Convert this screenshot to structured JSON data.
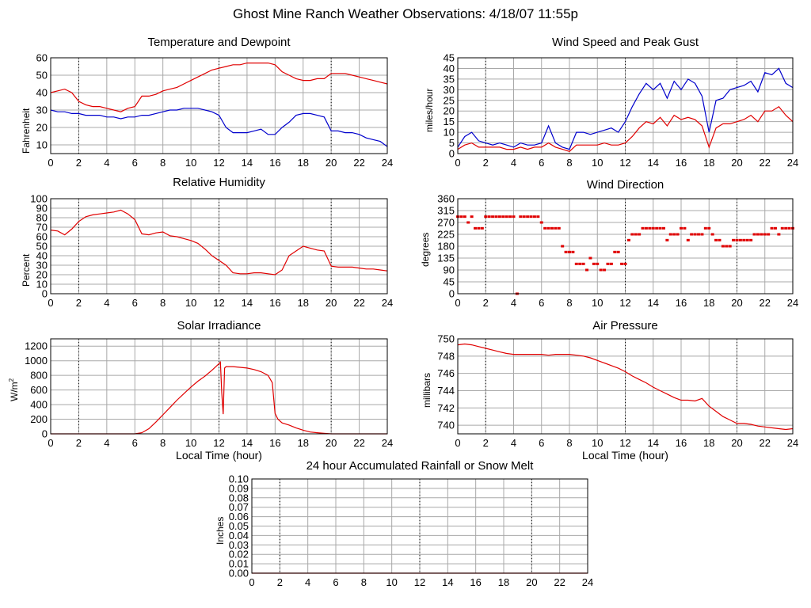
{
  "page": {
    "title": "Ghost Mine Ranch Weather Observations: 4/18/07 11:55p"
  },
  "colors": {
    "red": "#e00000",
    "blue": "#0000cc",
    "grid": "#a8a8a8",
    "frame": "#000000"
  },
  "x_ticks": [
    "0",
    "2",
    "4",
    "6",
    "8",
    "10",
    "12",
    "14",
    "16",
    "18",
    "20",
    "22",
    "24"
  ],
  "x_axis_label": "Local Time (hour)",
  "chart_data": [
    {
      "id": "temp",
      "type": "line",
      "title": "Temperature and Dewpoint",
      "ylabel": "Fahrenheit",
      "xlim": [
        0,
        24
      ],
      "ylim": [
        5,
        60
      ],
      "yticks": [
        "10",
        "20",
        "30",
        "40",
        "50",
        "60"
      ],
      "grid": true,
      "series": [
        {
          "color": "#e00000",
          "x": [
            0,
            0.5,
            1,
            1.5,
            2,
            2.5,
            3,
            3.5,
            4,
            4.5,
            5,
            5.5,
            6,
            6.5,
            7,
            7.5,
            8,
            8.5,
            9,
            9.5,
            10,
            10.5,
            11,
            11.5,
            12,
            12.5,
            13,
            13.5,
            14,
            14.5,
            15,
            15.5,
            16,
            16.5,
            17,
            17.5,
            18,
            18.5,
            19,
            19.5,
            20,
            20.5,
            21,
            21.5,
            22,
            22.5,
            23,
            23.5,
            24
          ],
          "y": [
            40,
            41,
            42,
            40,
            35,
            33,
            32,
            32,
            31,
            30,
            29,
            31,
            32,
            38,
            38,
            39,
            41,
            42,
            43,
            45,
            47,
            49,
            51,
            53,
            54,
            55,
            56,
            56,
            57,
            57,
            57,
            57,
            56,
            52,
            50,
            48,
            47,
            47,
            48,
            48,
            51,
            51,
            51,
            50,
            49,
            48,
            47,
            46,
            45
          ]
        },
        {
          "color": "#0000cc",
          "x": [
            0,
            0.5,
            1,
            1.5,
            2,
            2.5,
            3,
            3.5,
            4,
            4.5,
            5,
            5.5,
            6,
            6.5,
            7,
            7.5,
            8,
            8.5,
            9,
            9.5,
            10,
            10.5,
            11,
            11.5,
            12,
            12.5,
            13,
            13.5,
            14,
            14.5,
            15,
            15.5,
            16,
            16.5,
            17,
            17.5,
            18,
            18.5,
            19,
            19.5,
            20,
            20.5,
            21,
            21.5,
            22,
            22.5,
            23,
            23.5,
            24
          ],
          "y": [
            30,
            29,
            29,
            28,
            28,
            27,
            27,
            27,
            26,
            26,
            25,
            26,
            26,
            27,
            27,
            28,
            29,
            30,
            30,
            31,
            31,
            31,
            30,
            29,
            27,
            20,
            17,
            17,
            17,
            18,
            19,
            16,
            16,
            20,
            23,
            27,
            28,
            28,
            27,
            26,
            18,
            18,
            17,
            17,
            16,
            14,
            13,
            12,
            9
          ]
        }
      ]
    },
    {
      "id": "wind",
      "type": "line",
      "title": "Wind Speed and Peak Gust",
      "ylabel": "miles/hour",
      "xlim": [
        0,
        24
      ],
      "ylim": [
        0,
        45
      ],
      "yticks": [
        "0",
        "5",
        "10",
        "15",
        "20",
        "25",
        "30",
        "35",
        "40",
        "45"
      ],
      "grid": true,
      "series": [
        {
          "color": "#0000cc",
          "x": [
            0,
            0.5,
            1,
            1.5,
            2,
            2.5,
            3,
            3.5,
            4,
            4.5,
            5,
            5.5,
            6,
            6.5,
            7,
            7.5,
            8,
            8.5,
            9,
            9.5,
            10,
            10.5,
            11,
            11.5,
            12,
            12.5,
            13,
            13.5,
            14,
            14.5,
            15,
            15.5,
            16,
            16.5,
            17,
            17.5,
            18,
            18.5,
            19,
            19.5,
            20,
            20.5,
            21,
            21.5,
            22,
            22.5,
            23,
            23.5,
            24
          ],
          "y": [
            3,
            8,
            10,
            6,
            5,
            4,
            5,
            4,
            3,
            5,
            4,
            4,
            5,
            13,
            5,
            3,
            2,
            10,
            10,
            9,
            10,
            11,
            12,
            10,
            15,
            22,
            28,
            33,
            30,
            33,
            26,
            34,
            30,
            35,
            33,
            27,
            10,
            25,
            26,
            30,
            31,
            32,
            34,
            29,
            38,
            37,
            40,
            33,
            31
          ]
        },
        {
          "color": "#e00000",
          "x": [
            0,
            0.5,
            1,
            1.5,
            2,
            2.5,
            3,
            3.5,
            4,
            4.5,
            5,
            5.5,
            6,
            6.5,
            7,
            7.5,
            8,
            8.5,
            9,
            9.5,
            10,
            10.5,
            11,
            11.5,
            12,
            12.5,
            13,
            13.5,
            14,
            14.5,
            15,
            15.5,
            16,
            16.5,
            17,
            17.5,
            18,
            18.5,
            19,
            19.5,
            20,
            20.5,
            21,
            21.5,
            22,
            22.5,
            23,
            23.5,
            24
          ],
          "y": [
            2,
            4,
            5,
            3,
            3,
            3,
            3,
            2,
            2,
            3,
            2,
            3,
            3,
            5,
            3,
            2,
            1,
            4,
            4,
            4,
            4,
            5,
            4,
            4,
            5,
            8,
            12,
            15,
            14,
            17,
            13,
            18,
            16,
            17,
            16,
            13,
            3,
            12,
            14,
            14,
            15,
            16,
            18,
            15,
            20,
            20,
            22,
            18,
            15
          ]
        }
      ]
    },
    {
      "id": "rh",
      "type": "line",
      "title": "Relative Humidity",
      "ylabel": "Percent",
      "xlim": [
        0,
        24
      ],
      "ylim": [
        0,
        100
      ],
      "yticks": [
        "0",
        "10",
        "20",
        "30",
        "40",
        "50",
        "60",
        "70",
        "80",
        "90",
        "100"
      ],
      "grid": true,
      "series": [
        {
          "color": "#e00000",
          "x": [
            0,
            0.5,
            1,
            1.5,
            2,
            2.5,
            3,
            3.5,
            4,
            4.5,
            5,
            5.5,
            6,
            6.5,
            7,
            7.5,
            8,
            8.5,
            9,
            9.5,
            10,
            10.5,
            11,
            11.5,
            12,
            12.5,
            13,
            13.5,
            14,
            14.5,
            15,
            15.5,
            16,
            16.5,
            17,
            17.5,
            18,
            18.5,
            19,
            19.5,
            20,
            20.5,
            21,
            21.5,
            22,
            22.5,
            23,
            23.5,
            24
          ],
          "y": [
            67,
            66,
            62,
            68,
            76,
            81,
            83,
            84,
            85,
            86,
            88,
            84,
            78,
            63,
            62,
            64,
            65,
            61,
            60,
            58,
            56,
            53,
            47,
            40,
            35,
            30,
            22,
            21,
            21,
            22,
            22,
            21,
            20,
            25,
            40,
            45,
            50,
            48,
            46,
            45,
            29,
            28,
            28,
            28,
            27,
            26,
            26,
            25,
            24
          ]
        }
      ]
    },
    {
      "id": "wdir",
      "type": "scatter",
      "title": "Wind Direction",
      "ylabel": "degrees",
      "xlim": [
        0,
        24
      ],
      "ylim": [
        0,
        360
      ],
      "yticks": [
        "0",
        "45",
        "90",
        "135",
        "180",
        "225",
        "270",
        "315",
        "360"
      ],
      "grid": true,
      "series": [
        {
          "color": "#e00000",
          "x": [
            0,
            0.25,
            0.5,
            0.75,
            1,
            1.25,
            1.5,
            1.75,
            2,
            2.25,
            2.5,
            2.75,
            3,
            3.25,
            3.5,
            3.75,
            4,
            4.25,
            4.5,
            4.75,
            5,
            5.25,
            5.5,
            5.75,
            6,
            6.25,
            6.5,
            6.75,
            7,
            7.25,
            7.5,
            7.75,
            8,
            8.25,
            8.5,
            8.75,
            9,
            9.25,
            9.5,
            9.75,
            10,
            10.25,
            10.5,
            10.75,
            11,
            11.25,
            11.5,
            11.75,
            12,
            12.25,
            12.5,
            12.75,
            13,
            13.25,
            13.5,
            13.75,
            14,
            14.25,
            14.5,
            14.75,
            15,
            15.25,
            15.5,
            15.75,
            16,
            16.25,
            16.5,
            16.75,
            17,
            17.25,
            17.5,
            17.75,
            18,
            18.25,
            18.5,
            18.75,
            19,
            19.25,
            19.5,
            19.75,
            20,
            20.25,
            20.5,
            20.75,
            21,
            21.25,
            21.5,
            21.75,
            22,
            22.25,
            22.5,
            22.75,
            23,
            23.25,
            23.5,
            23.75,
            24
          ],
          "y": [
            292,
            292,
            292,
            270,
            292,
            248,
            248,
            248,
            292,
            292,
            292,
            292,
            292,
            292,
            292,
            292,
            292,
            0,
            292,
            292,
            292,
            292,
            292,
            292,
            270,
            248,
            248,
            248,
            248,
            248,
            180,
            158,
            158,
            158,
            113,
            113,
            113,
            90,
            135,
            113,
            113,
            90,
            90,
            113,
            113,
            158,
            158,
            113,
            113,
            203,
            225,
            225,
            225,
            248,
            248,
            248,
            248,
            248,
            248,
            248,
            203,
            225,
            225,
            225,
            248,
            248,
            203,
            225,
            225,
            225,
            225,
            248,
            248,
            225,
            203,
            203,
            180,
            180,
            180,
            203,
            203,
            203,
            203,
            203,
            203,
            225,
            225,
            225,
            225,
            225,
            248,
            248,
            225,
            248,
            248,
            248,
            248
          ]
        }
      ]
    },
    {
      "id": "solar",
      "type": "line",
      "title": "Solar Irradiance",
      "ylabel": "W/m",
      "ylabel_sup": "2",
      "xlabel": "Local Time (hour)",
      "xlim": [
        0,
        24
      ],
      "ylim": [
        0,
        1300
      ],
      "yticks": [
        "0",
        "200",
        "400",
        "600",
        "800",
        "1000",
        "1200"
      ],
      "grid": true,
      "series": [
        {
          "color": "#e00000",
          "x": [
            0,
            6,
            6.5,
            7,
            7.5,
            8,
            8.5,
            9,
            9.5,
            10,
            10.5,
            11,
            11.5,
            12,
            12.1,
            12.2,
            12.3,
            12.4,
            12.5,
            13,
            13.5,
            14,
            14.5,
            15,
            15.5,
            15.8,
            16,
            16.2,
            16.5,
            17,
            17.5,
            18,
            18.5,
            19,
            19.5,
            20,
            24
          ],
          "y": [
            0,
            0,
            15,
            70,
            160,
            260,
            360,
            460,
            550,
            640,
            720,
            790,
            870,
            960,
            980,
            560,
            270,
            900,
            920,
            920,
            910,
            900,
            880,
            850,
            800,
            700,
            280,
            200,
            150,
            120,
            80,
            50,
            25,
            15,
            8,
            0,
            0
          ]
        }
      ]
    },
    {
      "id": "pressure",
      "type": "line",
      "title": "Air Pressure",
      "ylabel": "millibars",
      "xlabel": "Local Time (hour)",
      "xlim": [
        0,
        24
      ],
      "ylim": [
        739,
        750
      ],
      "yticks": [
        "740",
        "742",
        "744",
        "746",
        "748",
        "750"
      ],
      "grid": true,
      "series": [
        {
          "color": "#e00000",
          "x": [
            0,
            0.5,
            1,
            1.5,
            2,
            2.5,
            3,
            3.5,
            4,
            4.5,
            5,
            5.5,
            6,
            6.5,
            7,
            7.5,
            8,
            8.5,
            9,
            9.5,
            10,
            10.5,
            11,
            11.5,
            12,
            12.5,
            13,
            13.5,
            14,
            14.5,
            15,
            15.5,
            16,
            16.5,
            17,
            17.5,
            18,
            18.5,
            19,
            19.5,
            20,
            20.5,
            21,
            21.5,
            22,
            22.5,
            23,
            23.5,
            24
          ],
          "y": [
            749.3,
            749.4,
            749.3,
            749.1,
            748.9,
            748.7,
            748.5,
            748.3,
            748.2,
            748.2,
            748.2,
            748.2,
            748.2,
            748.1,
            748.2,
            748.2,
            748.2,
            748.1,
            748.0,
            747.8,
            747.5,
            747.2,
            746.9,
            746.6,
            746.2,
            745.7,
            745.3,
            744.9,
            744.4,
            744.0,
            743.6,
            743.2,
            742.9,
            742.9,
            742.8,
            743.1,
            742.2,
            741.6,
            741.0,
            740.6,
            740.2,
            740.2,
            740.1,
            739.9,
            739.8,
            739.7,
            739.6,
            739.5,
            739.6
          ]
        }
      ]
    },
    {
      "id": "rain",
      "type": "line",
      "title": "24 hour Accumulated Rainfall or Snow Melt",
      "ylabel": "Inches",
      "xlim": [
        0,
        24
      ],
      "ylim": [
        0,
        0.1
      ],
      "yticks": [
        "0.00",
        "0.01",
        "0.02",
        "0.03",
        "0.04",
        "0.05",
        "0.06",
        "0.07",
        "0.08",
        "0.09",
        "0.10"
      ],
      "grid": true,
      "series": [
        {
          "color": "#e00000",
          "x": [
            0,
            24
          ],
          "y": [
            0,
            0
          ]
        }
      ]
    }
  ]
}
